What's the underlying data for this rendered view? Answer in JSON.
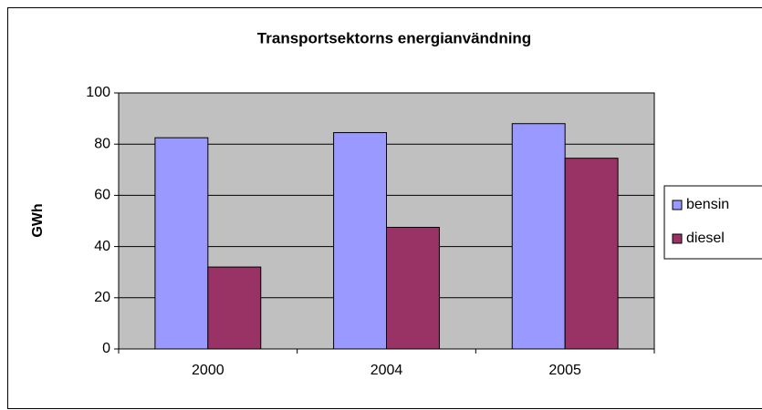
{
  "chart_data": {
    "type": "bar",
    "title": "Transportsektorns energianvändning",
    "ylabel": "GWh",
    "categories": [
      "2000",
      "2004",
      "2005"
    ],
    "series": [
      {
        "name": "bensin",
        "color": "#9999ff",
        "values": [
          82.5,
          84.5,
          88
        ]
      },
      {
        "name": "diesel",
        "color": "#993366",
        "values": [
          32,
          47.5,
          74.5
        ]
      }
    ],
    "ylim": [
      0,
      100
    ],
    "yticks": [
      0,
      20,
      40,
      60,
      80,
      100
    ],
    "grid": true,
    "plot_background": "#c0c0c0",
    "legend": "right"
  }
}
